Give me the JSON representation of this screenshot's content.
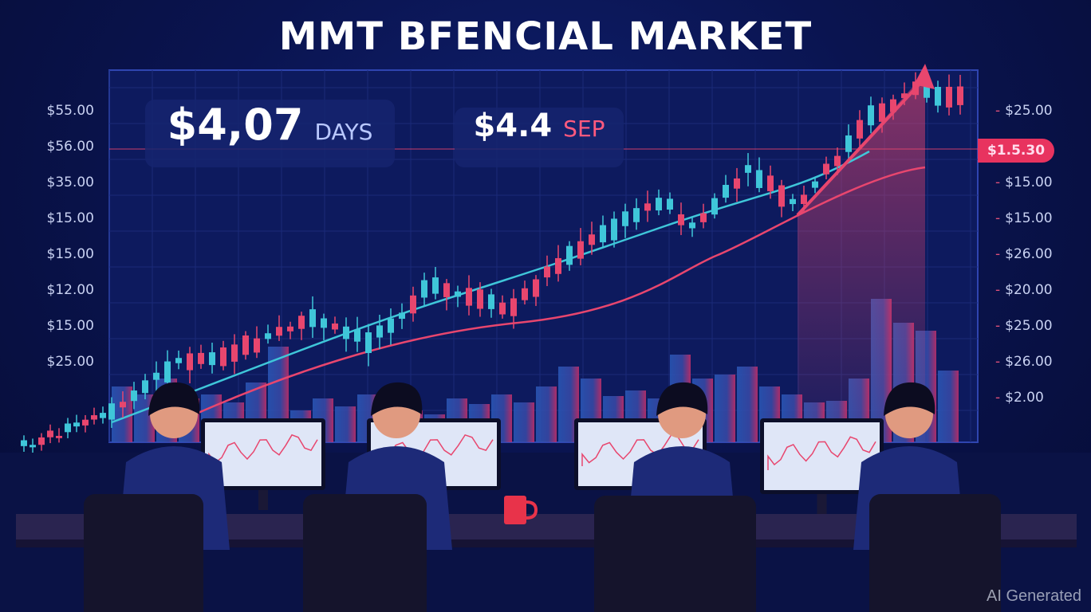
{
  "title": "MMT BFENCIAL MARKET",
  "stats": [
    {
      "value": "$4,07",
      "unit": "DAYS",
      "unit_color": "#b9c8ff"
    },
    {
      "value": "$4.4",
      "unit": "SEP",
      "unit_color": "#ff5a7e"
    }
  ],
  "left_axis_labels": [
    "$55.00",
    "$56.00",
    "$35.00",
    "$15.00",
    "$15.00",
    "$12.00",
    "$15.00",
    "$25.00"
  ],
  "right_axis_labels": [
    "$25.00",
    "$15.00",
    "$15.00",
    "$26.00",
    "$20.00",
    "$25.00",
    "$26.00",
    "$2.00"
  ],
  "price_badge": "$1.5.30",
  "colors": {
    "up": "#3fc6d9",
    "down": "#e8466e",
    "accent": "#e8335f",
    "background": "#0a1450"
  },
  "watermark": "AI Generated"
}
